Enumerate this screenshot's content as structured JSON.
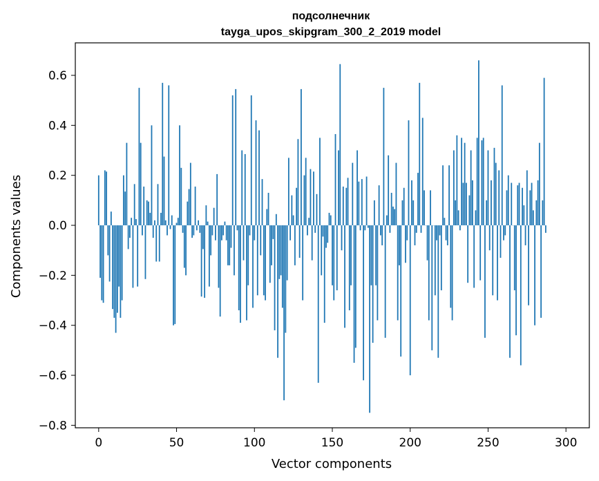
{
  "chart_data": {
    "type": "bar",
    "title": [
      "подсолнечник",
      "tayga_upos_skipgram_300_2_2019 model"
    ],
    "xlabel": "Vector components",
    "ylabel": "Components values",
    "xlim": [
      -15,
      315
    ],
    "ylim": [
      -0.81,
      0.73
    ],
    "xticks": [
      0,
      50,
      100,
      150,
      200,
      250,
      300
    ],
    "xtick_labels": [
      "0",
      "50",
      "100",
      "150",
      "200",
      "250",
      "300"
    ],
    "yticks": [
      -0.8,
      -0.6,
      -0.4,
      -0.2,
      0.0,
      0.2,
      0.4,
      0.6
    ],
    "ytick_labels": [
      "−0.8",
      "−0.6",
      "−0.4",
      "−0.2",
      "0.0",
      "0.2",
      "0.4",
      "0.6"
    ],
    "grid": false,
    "bar_color": "#1f77b4",
    "x_start": 0,
    "values": [
      0.2,
      -0.21,
      -0.3,
      -0.31,
      0.22,
      0.215,
      -0.12,
      -0.225,
      0.055,
      -0.335,
      -0.37,
      -0.43,
      -0.35,
      -0.245,
      -0.37,
      -0.3,
      0.2,
      0.135,
      0.33,
      -0.095,
      -0.05,
      0.03,
      -0.25,
      0.165,
      0.025,
      -0.245,
      0.55,
      0.33,
      -0.04,
      0.155,
      -0.215,
      0.1,
      0.095,
      0.05,
      0.4,
      -0.05,
      0.02,
      -0.145,
      0.165,
      -0.145,
      0.05,
      0.57,
      0.275,
      0.02,
      -0.04,
      0.56,
      -0.015,
      0.04,
      -0.4,
      -0.395,
      0.01,
      0.03,
      0.4,
      0.23,
      -0.03,
      -0.17,
      -0.2,
      0.095,
      0.145,
      0.25,
      -0.05,
      -0.04,
      0.155,
      -0.02,
      0.02,
      -0.03,
      -0.285,
      -0.095,
      -0.29,
      0.08,
      0.015,
      -0.245,
      -0.12,
      -0.04,
      0.07,
      -0.06,
      0.205,
      -0.25,
      -0.365,
      -0.06,
      -0.04,
      0.015,
      -0.06,
      -0.16,
      -0.16,
      -0.09,
      0.52,
      -0.2,
      0.545,
      -0.02,
      -0.34,
      -0.39,
      0.3,
      -0.14,
      0.285,
      -0.38,
      -0.24,
      -0.04,
      0.52,
      -0.33,
      -0.06,
      0.42,
      -0.28,
      0.38,
      -0.12,
      0.185,
      -0.28,
      -0.3,
      0.065,
      0.13,
      -0.23,
      -0.16,
      -0.055,
      -0.42,
      0.045,
      -0.53,
      -0.215,
      -0.2,
      -0.33,
      -0.7,
      -0.43,
      -0.22,
      0.27,
      -0.06,
      0.12,
      0.04,
      -0.16,
      0.15,
      0.345,
      -0.13,
      0.545,
      -0.3,
      0.2,
      0.27,
      -0.04,
      0.03,
      0.225,
      -0.14,
      0.215,
      -0.03,
      0.125,
      -0.63,
      0.35,
      -0.2,
      -0.045,
      -0.39,
      -0.09,
      -0.07,
      0.05,
      0.04,
      -0.24,
      -0.3,
      0.365,
      -0.26,
      0.3,
      0.645,
      -0.1,
      0.155,
      -0.41,
      0.15,
      0.19,
      -0.34,
      -0.24,
      0.25,
      -0.55,
      -0.49,
      0.3,
      0.175,
      -0.02,
      0.185,
      -0.62,
      -0.02,
      0.195,
      -0.01,
      -0.75,
      -0.24,
      -0.47,
      0.1,
      -0.24,
      -0.38,
      0.16,
      -0.04,
      -0.08,
      0.55,
      -0.45,
      0.04,
      0.28,
      -0.03,
      0.13,
      0.075,
      0.065,
      0.25,
      -0.38,
      -0.16,
      -0.525,
      0.1,
      0.15,
      -0.15,
      -0.06,
      0.42,
      -0.6,
      0.18,
      0.1,
      -0.08,
      -0.03,
      0.21,
      0.57,
      -0.03,
      0.43,
      0.14,
      0.0,
      -0.14,
      -0.38,
      0.14,
      -0.5,
      0.0,
      -0.28,
      -0.06,
      -0.53,
      -0.04,
      -0.26,
      0.24,
      0.03,
      -0.06,
      -0.08,
      0.24,
      -0.33,
      -0.38,
      0.3,
      0.1,
      0.36,
      0.06,
      -0.02,
      0.35,
      0.17,
      0.33,
      0.17,
      -0.23,
      0.12,
      0.3,
      0.18,
      -0.25,
      0.06,
      0.35,
      0.66,
      -0.22,
      0.34,
      0.35,
      -0.45,
      0.1,
      0.3,
      -0.1,
      0.18,
      -0.28,
      0.31,
      0.25,
      -0.3,
      0.22,
      -0.13,
      0.56,
      -0.06,
      -0.04,
      0.14,
      0.2,
      -0.53,
      0.17,
      0.0,
      -0.26,
      -0.44,
      0.16,
      0.17,
      -0.56,
      0.15,
      0.08,
      -0.08,
      0.22,
      -0.32,
      0.14,
      0.17,
      0.06,
      -0.4,
      0.1,
      0.18,
      0.33,
      -0.37,
      0.1,
      0.59,
      -0.03
    ]
  }
}
